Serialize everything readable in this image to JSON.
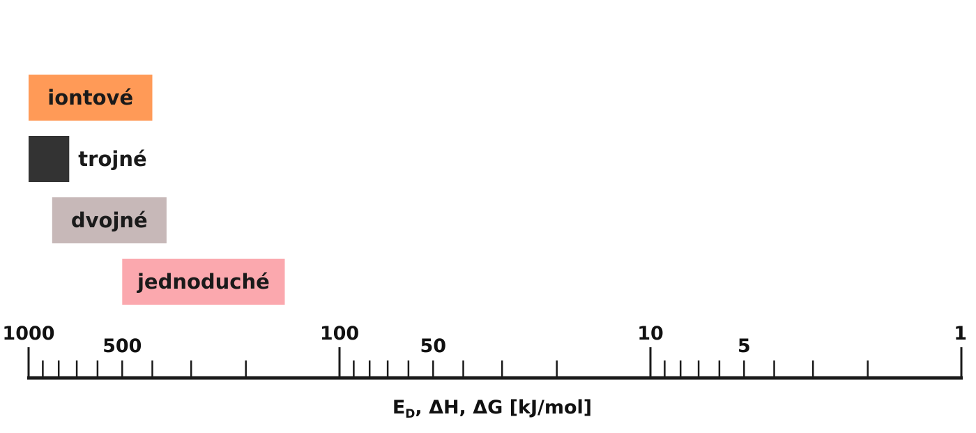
{
  "chart_data": {
    "type": "bar",
    "x_scale": "log",
    "x_direction": "descending",
    "xlim": [
      1000,
      1
    ],
    "xlabel": {
      "main": "E",
      "subscript": "D",
      "rest": ", ΔH, ΔG [kJ/mol]"
    },
    "major_ticks": [
      {
        "value": 1000,
        "label": "1000"
      },
      {
        "value": 500,
        "label": "500"
      },
      {
        "value": 100,
        "label": "100"
      },
      {
        "value": 50,
        "label": "50"
      },
      {
        "value": 10,
        "label": "10"
      },
      {
        "value": 5,
        "label": "5"
      },
      {
        "value": 1,
        "label": "1"
      }
    ],
    "minor_ticks": [
      900,
      800,
      700,
      600,
      400,
      300,
      200,
      90,
      80,
      70,
      60,
      40,
      30,
      20,
      9,
      8,
      7,
      6,
      4,
      3,
      2
    ],
    "series": [
      {
        "name": "iontové",
        "range": [
          1000,
          400
        ],
        "color": "#ff9a57",
        "label_inside": true
      },
      {
        "name": "trojné",
        "range": [
          1000,
          740
        ],
        "color": "#333333",
        "label_inside": false
      },
      {
        "name": "dvojné",
        "range": [
          840,
          360
        ],
        "color": "#c7b8b8",
        "label_inside": true
      },
      {
        "name": "jednoduché",
        "range": [
          500,
          150
        ],
        "color": "#fba8ae",
        "label_inside": true
      }
    ]
  }
}
